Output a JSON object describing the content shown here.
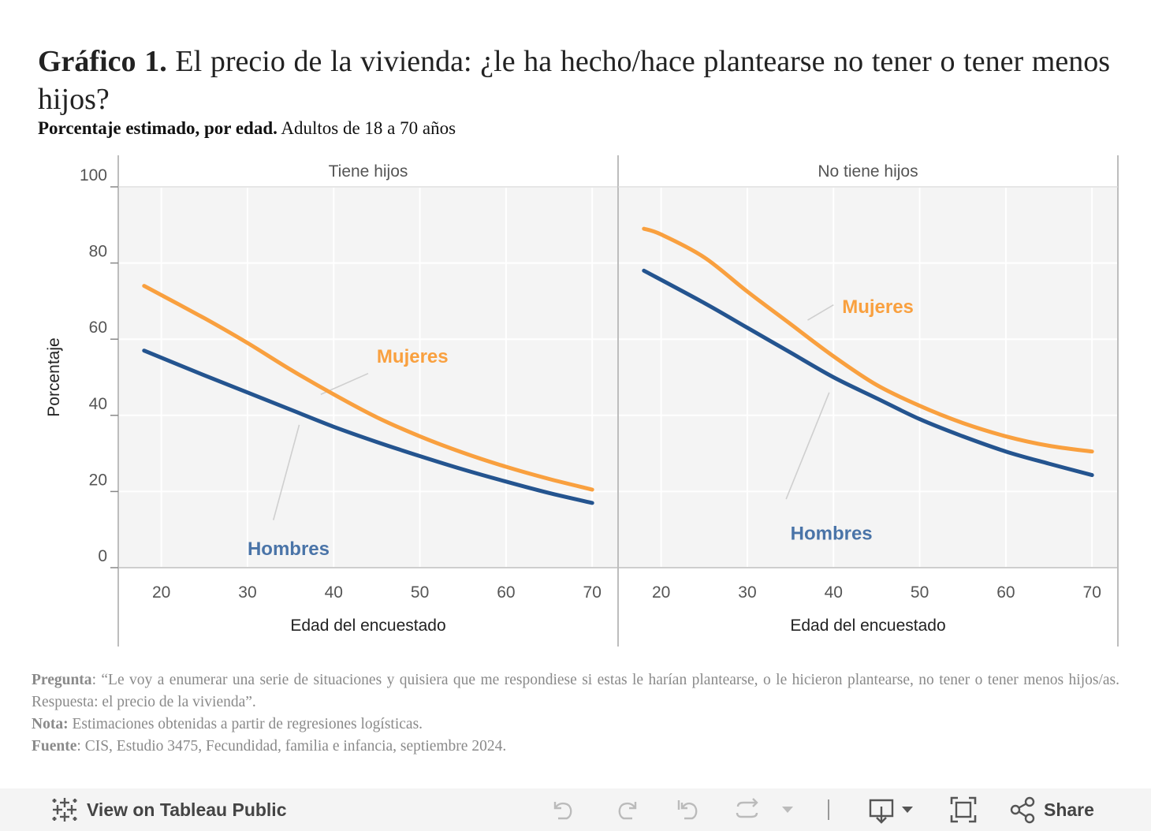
{
  "header": {
    "title_bold": "Gráfico 1.",
    "title_rest": "El precio de la vivienda: ¿le ha hecho/hace plantearse no tener o tener menos hijos?",
    "subtitle_bold": "Porcentaje estimado, por edad.",
    "subtitle_rest": "Adultos de 18 a 70 años"
  },
  "chart_data": {
    "type": "line",
    "ylabel": "Porcentaje",
    "xlabel": "Edad del encuestado",
    "ylim": [
      0,
      100
    ],
    "xlim": [
      15,
      73
    ],
    "yticks": [
      0,
      20,
      40,
      60,
      80,
      100
    ],
    "xticks": [
      20,
      30,
      40,
      50,
      60,
      70
    ],
    "colors": {
      "Mujeres": "#f9a03f",
      "Hombres": "#24548f"
    },
    "panels": [
      {
        "name": "Tiene hijos",
        "series": [
          {
            "name": "Mujeres",
            "x": [
              18,
              25,
              30,
              35,
              40,
              45,
              50,
              55,
              60,
              65,
              70
            ],
            "values": [
              74,
              65.5,
              59,
              52,
              45.5,
              39.5,
              34.5,
              30.2,
              26.5,
              23.3,
              20.5
            ]
          },
          {
            "name": "Hombres",
            "x": [
              18,
              25,
              30,
              35,
              40,
              45,
              50,
              55,
              60,
              65,
              70
            ],
            "values": [
              57,
              50.5,
              46,
              41.5,
              37,
              33,
              29.3,
              25.8,
              22.6,
              19.6,
              17
            ]
          }
        ],
        "annotations": [
          {
            "text": "Mujeres",
            "series": "Mujeres",
            "x": 45,
            "y": 55.5,
            "line_from": [
              44,
              51
            ],
            "line_to": [
              38.5,
              45.5
            ]
          },
          {
            "text": "Hombres",
            "series": "Hombres",
            "x": 30,
            "y": 5,
            "line_from": [
              33,
              12.5
            ],
            "line_to": [
              36,
              37.5
            ]
          }
        ]
      },
      {
        "name": "No tiene hijos",
        "series": [
          {
            "name": "Mujeres",
            "x": [
              18,
              20,
              25,
              30,
              35,
              40,
              45,
              50,
              55,
              60,
              65,
              70
            ],
            "values": [
              89,
              87.5,
              81.5,
              72.5,
              64,
              55.5,
              48,
              42.5,
              38,
              34.5,
              32,
              30.5
            ]
          },
          {
            "name": "Hombres",
            "x": [
              18,
              25,
              30,
              35,
              40,
              45,
              50,
              55,
              60,
              65,
              70
            ],
            "values": [
              78,
              69.5,
              63,
              56.5,
              50,
              44.5,
              39,
              34.5,
              30.5,
              27.3,
              24.3
            ]
          }
        ],
        "annotations": [
          {
            "text": "Mujeres",
            "series": "Mujeres",
            "x": 41,
            "y": 68.5,
            "line_from": [
              40,
              69
            ],
            "line_to": [
              37,
              65
            ]
          },
          {
            "text": "Hombres",
            "series": "Hombres",
            "x": 35,
            "y": 9,
            "line_from": [
              34.5,
              18
            ],
            "line_to": [
              39.5,
              46
            ]
          }
        ]
      }
    ]
  },
  "notes": {
    "pregunta_label": "Pregunta",
    "pregunta_text": ": “Le voy a enumerar una serie de situaciones y quisiera que me respondiese si estas le harían plantearse, o le hicieron plantearse, no tener o tener menos hijos/as. Respuesta: el precio de la vivienda”.",
    "nota_label": "Nota:",
    "nota_text": "Estimaciones obtenidas a partir de regresiones logísticas.",
    "fuente_label": "Fuente",
    "fuente_text": ": CIS, Estudio 3475, Fecundidad, familia e infancia, septiembre 2024."
  },
  "toolbar": {
    "view_label": "View on Tableau Public",
    "share_label": "Share",
    "icons": [
      "tableau-logo-icon",
      "undo-icon",
      "redo-icon",
      "revert-icon",
      "refresh-icon",
      "dropdown-icon",
      "download-icon",
      "fullscreen-icon",
      "share-icon"
    ]
  }
}
